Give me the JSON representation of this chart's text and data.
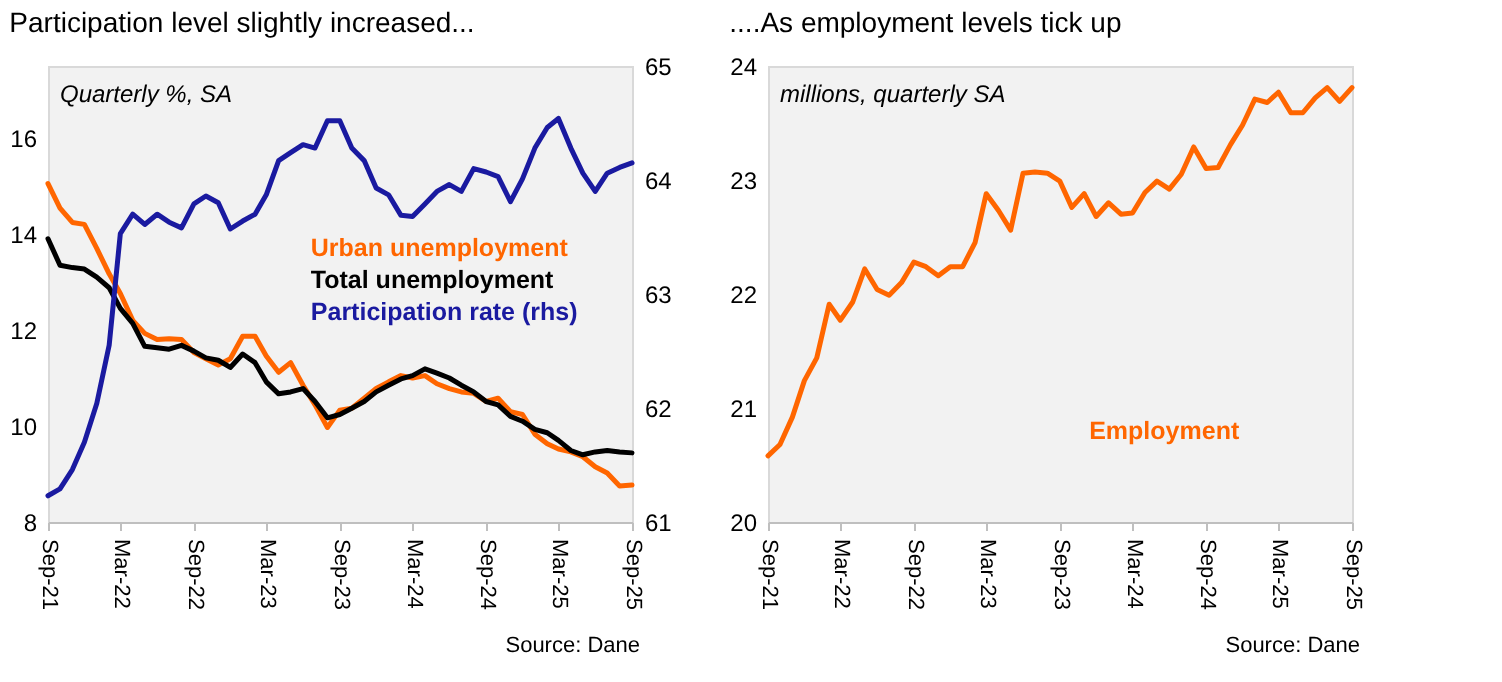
{
  "chart_data": [
    {
      "type": "line",
      "title": "Participation level slightly increased...",
      "annotations": [
        "Quarterly %, SA",
        "Source: Dane"
      ],
      "legend": "center",
      "x": [
        "2021-09",
        "2021-10",
        "2021-11",
        "2021-12",
        "2022-01",
        "2022-02",
        "2022-03",
        "2022-04",
        "2022-05",
        "2022-06",
        "2022-07",
        "2022-08",
        "2022-09",
        "2022-10",
        "2022-11",
        "2022-12",
        "2023-01",
        "2023-02",
        "2023-03",
        "2023-04",
        "2023-05",
        "2023-06",
        "2023-07",
        "2023-08",
        "2023-09",
        "2023-10",
        "2023-11",
        "2023-12",
        "2024-01",
        "2024-02",
        "2024-03",
        "2024-04",
        "2024-05",
        "2024-06",
        "2024-07",
        "2024-08",
        "2024-09",
        "2024-10",
        "2024-11",
        "2024-12",
        "2025-01",
        "2025-02",
        "2025-03",
        "2025-04",
        "2025-05",
        "2025-06",
        "2025-07",
        "2025-08",
        "2025-09"
      ],
      "xlim": [
        "2021-09",
        "2025-09"
      ],
      "xticks": [
        {
          "value": "2021-09",
          "label": "Sep-21"
        },
        {
          "value": "2022-03",
          "label": "Mar-22"
        },
        {
          "value": "2022-09",
          "label": "Sep-22"
        },
        {
          "value": "2023-03",
          "label": "Mar-23"
        },
        {
          "value": "2023-09",
          "label": "Sep-23"
        },
        {
          "value": "2024-03",
          "label": "Mar-24"
        },
        {
          "value": "2024-09",
          "label": "Sep-24"
        },
        {
          "value": "2025-03",
          "label": "Mar-25"
        },
        {
          "value": "2025-09",
          "label": "Sep-25"
        }
      ],
      "ylim": [
        8,
        17.5
      ],
      "yticks": [
        8,
        10,
        12,
        14,
        16
      ],
      "y2lim": [
        61,
        65
      ],
      "y2ticks": [
        61,
        62,
        63,
        64,
        65
      ],
      "series": [
        {
          "name": "Urban unemployment",
          "color": "#ff6600",
          "values": [
            15.05,
            14.54,
            14.24,
            14.2,
            13.7,
            13.17,
            12.76,
            12.2,
            11.93,
            11.8,
            11.82,
            11.8,
            11.53,
            11.4,
            11.27,
            11.4,
            11.87,
            11.87,
            11.46,
            11.12,
            11.32,
            10.85,
            10.44,
            9.97,
            10.33,
            10.37,
            10.58,
            10.78,
            10.92,
            11.05,
            11.0,
            11.05,
            10.88,
            10.78,
            10.71,
            10.68,
            10.51,
            10.58,
            10.3,
            10.24,
            9.83,
            9.63,
            9.52,
            9.46,
            9.36,
            9.15,
            9.02,
            8.75,
            8.77
          ]
        },
        {
          "name": "Total unemployment",
          "color": "#000000",
          "values": [
            13.9,
            13.35,
            13.3,
            13.27,
            13.1,
            12.88,
            12.45,
            12.14,
            11.66,
            11.63,
            11.6,
            11.68,
            11.56,
            11.42,
            11.37,
            11.22,
            11.5,
            11.32,
            10.92,
            10.67,
            10.71,
            10.78,
            10.51,
            10.17,
            10.24,
            10.37,
            10.51,
            10.71,
            10.85,
            10.98,
            11.05,
            11.19,
            11.1,
            11.0,
            10.85,
            10.71,
            10.51,
            10.44,
            10.2,
            10.1,
            9.93,
            9.86,
            9.7,
            9.49,
            9.4,
            9.46,
            9.49,
            9.46,
            9.44
          ]
        },
        {
          "name": "Participation rate (rhs)",
          "color": "#1a1aa0",
          "axis": "y2",
          "values": [
            61.23,
            61.29,
            61.46,
            61.7,
            62.04,
            62.55,
            63.53,
            63.7,
            63.61,
            63.7,
            63.63,
            63.58,
            63.79,
            63.86,
            63.8,
            63.57,
            63.64,
            63.7,
            63.87,
            64.17,
            64.24,
            64.31,
            64.28,
            64.52,
            64.52,
            64.28,
            64.17,
            63.93,
            63.87,
            63.69,
            63.68,
            63.79,
            63.9,
            63.96,
            63.9,
            64.1,
            64.07,
            64.03,
            63.81,
            64.01,
            64.28,
            64.46,
            64.54,
            64.28,
            64.06,
            63.9,
            64.06,
            64.11,
            64.15
          ]
        }
      ]
    },
    {
      "type": "line",
      "title": "....As employment levels tick up",
      "annotations": [
        "millions, quarterly SA",
        "Source: Dane"
      ],
      "legend": "bottom right",
      "x": [
        "2021-09",
        "2021-10",
        "2021-11",
        "2021-12",
        "2022-01",
        "2022-02",
        "2022-03",
        "2022-04",
        "2022-05",
        "2022-06",
        "2022-07",
        "2022-08",
        "2022-09",
        "2022-10",
        "2022-11",
        "2022-12",
        "2023-01",
        "2023-02",
        "2023-03",
        "2023-04",
        "2023-05",
        "2023-06",
        "2023-07",
        "2023-08",
        "2023-09",
        "2023-10",
        "2023-11",
        "2023-12",
        "2024-01",
        "2024-02",
        "2024-03",
        "2024-04",
        "2024-05",
        "2024-06",
        "2024-07",
        "2024-08",
        "2024-09",
        "2024-10",
        "2024-11",
        "2024-12",
        "2025-01",
        "2025-02",
        "2025-03",
        "2025-04",
        "2025-05",
        "2025-06",
        "2025-07",
        "2025-08",
        "2025-09"
      ],
      "xlim": [
        "2021-09",
        "2025-09"
      ],
      "xticks": [
        {
          "value": "2021-09",
          "label": "Sep-21"
        },
        {
          "value": "2022-03",
          "label": "Mar-22"
        },
        {
          "value": "2022-09",
          "label": "Sep-22"
        },
        {
          "value": "2023-03",
          "label": "Mar-23"
        },
        {
          "value": "2023-09",
          "label": "Sep-23"
        },
        {
          "value": "2024-03",
          "label": "Mar-24"
        },
        {
          "value": "2024-09",
          "label": "Sep-24"
        },
        {
          "value": "2025-03",
          "label": "Mar-25"
        },
        {
          "value": "2025-09",
          "label": "Sep-25"
        }
      ],
      "ylim": [
        20,
        24
      ],
      "yticks": [
        20,
        21,
        22,
        23,
        24
      ],
      "series": [
        {
          "name": "Employment",
          "color": "#ff6600",
          "values": [
            20.58,
            20.68,
            20.92,
            21.24,
            21.44,
            21.91,
            21.77,
            21.93,
            22.22,
            22.04,
            21.99,
            22.1,
            22.28,
            22.24,
            22.16,
            22.24,
            22.24,
            22.45,
            22.88,
            22.73,
            22.56,
            23.06,
            23.07,
            23.06,
            22.99,
            22.76,
            22.88,
            22.68,
            22.8,
            22.7,
            22.71,
            22.89,
            22.99,
            22.92,
            23.05,
            23.29,
            23.1,
            23.11,
            23.31,
            23.48,
            23.71,
            23.68,
            23.77,
            23.59,
            23.59,
            23.72,
            23.81,
            23.69,
            23.81
          ]
        }
      ]
    }
  ]
}
